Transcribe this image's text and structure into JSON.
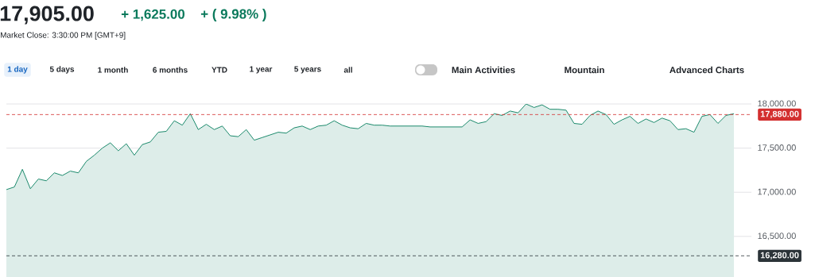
{
  "chart_data": {
    "type": "line",
    "title": "17,905.00",
    "subtitle": "Market Close: 3:30:00 PM [GMT+9]",
    "annotations": [
      "+ 1,625.00",
      "+ ( 9.98% )",
      "1 day",
      "5 days",
      "1 month",
      "6 months",
      "YTD",
      "1 year",
      "5 years",
      "all",
      "Main Activities",
      "Mountain",
      "Advanced Charts"
    ],
    "categories": [
      null,
      null,
      null,
      null,
      null,
      null,
      null,
      null,
      null,
      null,
      null,
      null,
      null,
      null,
      null,
      null,
      null,
      null,
      null,
      null,
      null,
      null,
      null,
      null,
      null,
      null,
      null,
      null,
      null,
      null,
      null,
      null,
      null,
      null,
      null,
      null,
      null,
      null,
      null,
      null,
      null,
      null,
      null,
      null,
      null,
      null,
      null,
      null,
      null,
      null,
      null,
      null,
      null,
      null,
      null,
      null,
      null,
      null,
      null,
      null,
      null,
      null,
      null,
      null,
      null,
      null,
      null,
      null,
      null,
      null,
      null,
      null,
      null,
      null,
      null,
      null,
      null,
      null,
      null,
      null,
      null,
      null,
      null,
      null,
      null,
      null,
      null,
      null,
      null,
      null,
      null,
      null
    ],
    "series": [
      {
        "color": "#1b8a6b",
        "values": [
          17030,
          17060,
          17260,
          17040,
          17150,
          17130,
          17220,
          17190,
          17240,
          17220,
          17350,
          17420,
          17500,
          17560,
          17470,
          17550,
          17420,
          17540,
          17570,
          17680,
          17690,
          17810,
          17760,
          17890,
          17710,
          17770,
          17710,
          17750,
          17640,
          17630,
          17710,
          17590,
          17620,
          17650,
          17680,
          17670,
          17730,
          17750,
          17710,
          17750,
          17760,
          17810,
          17760,
          17730,
          17720,
          17780,
          17760,
          17760,
          17750,
          17750,
          17750,
          17750,
          17750,
          17740,
          17740,
          17740,
          17740,
          17740,
          17820,
          17780,
          17800,
          17890,
          17870,
          17920,
          17900,
          18000,
          17960,
          17990,
          17940,
          17940,
          17930,
          17780,
          17770,
          17870,
          17920,
          17880,
          17770,
          17820,
          17860,
          17780,
          17830,
          17790,
          17840,
          17810,
          17710,
          17720,
          17680,
          17860,
          17880,
          17780,
          17870,
          17890
        ]
      }
    ],
    "ylim": [
      16040,
      18000
    ],
    "yticks": [
      {
        "value": 16500,
        "label": "16,500.00"
      },
      {
        "value": 17000,
        "label": "17,000.00"
      },
      {
        "value": 17500,
        "label": "17,500.00"
      },
      {
        "value": 18000,
        "label": "18,000.00"
      }
    ],
    "grid": "y",
    "tick_labels": "y",
    "ref_lines": [
      {
        "axis": "y",
        "value": 17880,
        "label": "17,880.00",
        "color": "#d32f2f",
        "line_style": "dashed"
      },
      {
        "axis": "y",
        "value": 16280,
        "label": "16,280.00",
        "color": "#2b3338",
        "line_style": "dashed"
      }
    ]
  }
}
